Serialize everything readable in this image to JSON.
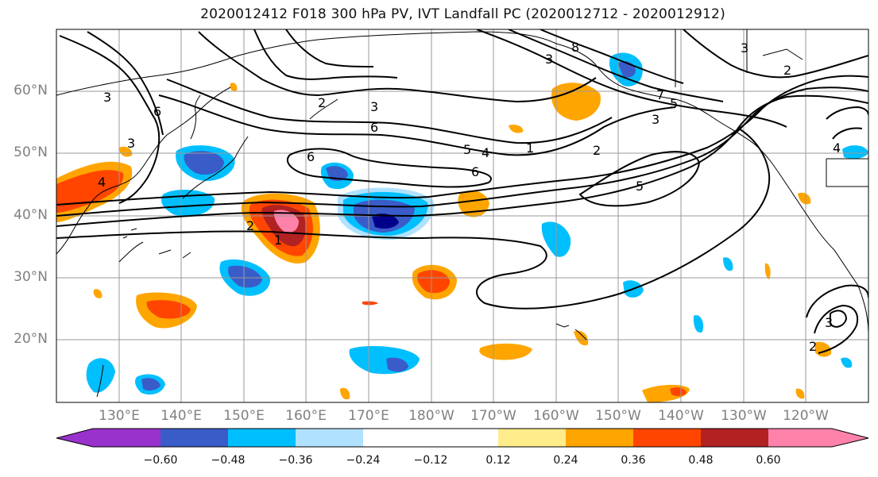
{
  "title": "2020012412 F018 300 hPa PV, IVT Landfall PC (2020012712 - 2020012912)",
  "lat_labels": [
    "60°N",
    "50°N",
    "40°N",
    "30°N",
    "20°N"
  ],
  "lon_labels": [
    "130°E",
    "140°E",
    "150°E",
    "160°E",
    "170°E",
    "180°W",
    "170°W",
    "160°W",
    "150°W",
    "140°W",
    "130°W",
    "120°W"
  ],
  "colorbar": {
    "tick_labels": [
      "−0.60",
      "−0.48",
      "−0.36",
      "−0.24",
      "−0.12",
      "0.12",
      "0.24",
      "0.36",
      "0.48",
      "0.60"
    ],
    "colors": [
      "#9932CC",
      "#00008B",
      "#3A5CC9",
      "#00BFFF",
      "#B0E2FF",
      "#FFFFFF",
      "#FFEC8B",
      "#FFA500",
      "#FF4500",
      "#B22222",
      "#FF82AB"
    ]
  },
  "contour_labels": [
    "1",
    "2",
    "3",
    "4",
    "5",
    "6",
    "7",
    "8"
  ],
  "map_extent": {
    "lon_min": 120,
    "lon_max": 250,
    "lat_min": 10,
    "lat_max": 70
  }
}
